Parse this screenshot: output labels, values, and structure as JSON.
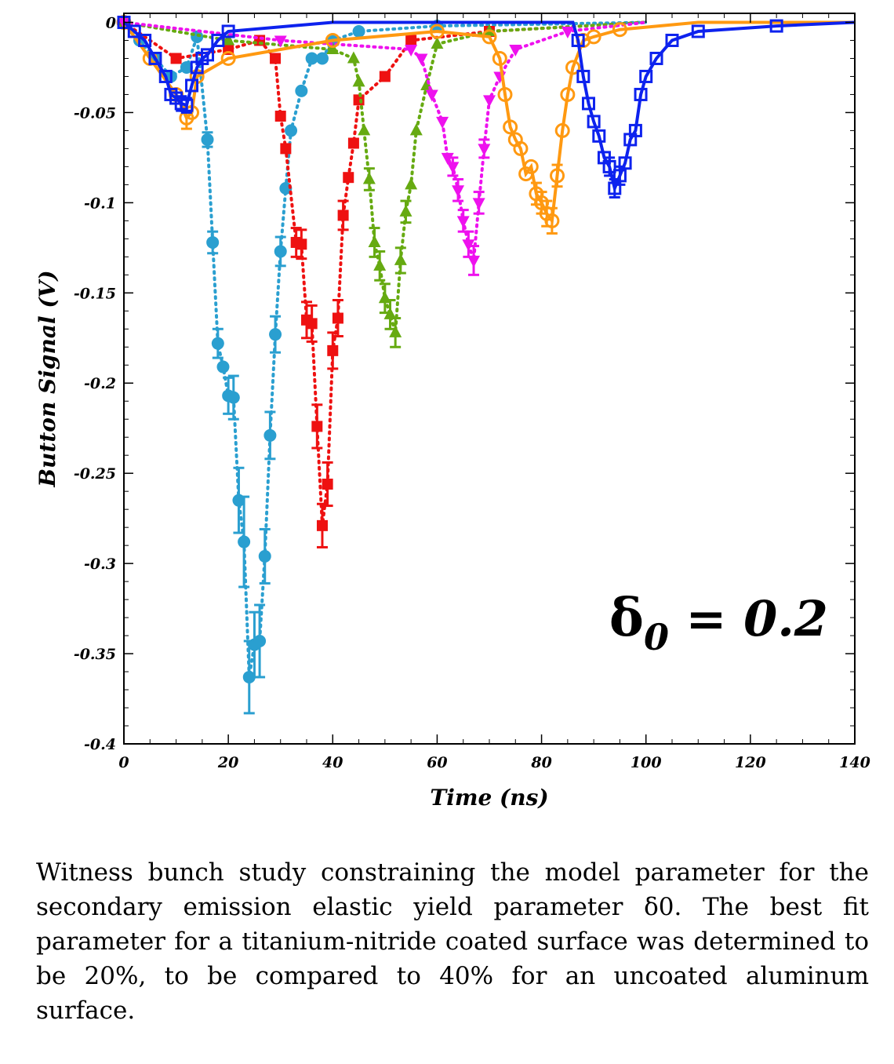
{
  "chart_data": {
    "type": "scatter",
    "xlabel": "Time (ns)",
    "ylabel": "Button Signal (V)",
    "xlim": [
      0,
      140
    ],
    "ylim": [
      -0.4,
      0.005
    ],
    "xticks": [
      0,
      20,
      40,
      60,
      80,
      100,
      120,
      140
    ],
    "xtick_labels": [
      "0",
      "20",
      "40",
      "60",
      "80",
      "100",
      "120",
      "140"
    ],
    "yticks": [
      0,
      -0.05,
      -0.1,
      -0.15,
      -0.2,
      -0.25,
      -0.3,
      -0.35,
      -0.4
    ],
    "ytick_labels": [
      "0",
      "-0.05",
      "-0.1",
      "-0.15",
      "-0.2",
      "-0.25",
      "-0.3",
      "-0.35",
      "-0.4"
    ],
    "grid": false,
    "annotation": {
      "symbol": "δ",
      "subscript": "0",
      "text": " = 0.2",
      "x": 114,
      "y": -0.34
    },
    "series": [
      {
        "color": "#2a9fd0",
        "marker": "circle",
        "line": "dotted",
        "points": [
          [
            0,
            0
          ],
          [
            3,
            -0.01
          ],
          [
            6,
            -0.02
          ],
          [
            9,
            -0.03
          ],
          [
            12,
            -0.025
          ],
          [
            14,
            -0.008
          ],
          [
            16,
            -0.065
          ],
          [
            17,
            -0.122
          ],
          [
            18,
            -0.178
          ],
          [
            19,
            -0.191
          ],
          [
            20,
            -0.207
          ],
          [
            21,
            -0.208
          ],
          [
            22,
            -0.265
          ],
          [
            23,
            -0.288
          ],
          [
            24,
            -0.363
          ],
          [
            25,
            -0.345
          ],
          [
            26,
            -0.343
          ],
          [
            27,
            -0.296
          ],
          [
            28,
            -0.229
          ],
          [
            29,
            -0.173
          ],
          [
            30,
            -0.127
          ],
          [
            31,
            -0.092
          ],
          [
            32,
            -0.06
          ],
          [
            34,
            -0.038
          ],
          [
            36,
            -0.02
          ],
          [
            38,
            -0.02
          ],
          [
            40,
            -0.01
          ],
          [
            45,
            -0.005
          ],
          [
            60,
            -0.002
          ],
          [
            100,
            0
          ]
        ],
        "errors": [
          [
            16,
            -0.065,
            0.004
          ],
          [
            17,
            -0.122,
            0.006
          ],
          [
            18,
            -0.178,
            0.008
          ],
          [
            20,
            -0.207,
            0.01
          ],
          [
            21,
            -0.208,
            0.012
          ],
          [
            22,
            -0.265,
            0.018
          ],
          [
            23,
            -0.288,
            0.025
          ],
          [
            24,
            -0.363,
            0.02
          ],
          [
            25,
            -0.345,
            0.018
          ],
          [
            26,
            -0.343,
            0.02
          ],
          [
            27,
            -0.296,
            0.015
          ],
          [
            28,
            -0.229,
            0.013
          ],
          [
            29,
            -0.173,
            0.01
          ],
          [
            30,
            -0.127,
            0.008
          ]
        ]
      },
      {
        "color": "#ee1111",
        "marker": "square",
        "line": "dotted",
        "points": [
          [
            0,
            0
          ],
          [
            10,
            -0.02
          ],
          [
            20,
            -0.015
          ],
          [
            26,
            -0.01
          ],
          [
            29,
            -0.02
          ],
          [
            30,
            -0.052
          ],
          [
            31,
            -0.07
          ],
          [
            33,
            -0.122
          ],
          [
            34,
            -0.123
          ],
          [
            35,
            -0.165
          ],
          [
            36,
            -0.167
          ],
          [
            37,
            -0.224
          ],
          [
            38,
            -0.279
          ],
          [
            39,
            -0.256
          ],
          [
            40,
            -0.182
          ],
          [
            41,
            -0.164
          ],
          [
            42,
            -0.107
          ],
          [
            43,
            -0.086
          ],
          [
            44,
            -0.067
          ],
          [
            45,
            -0.043
          ],
          [
            50,
            -0.03
          ],
          [
            55,
            -0.01
          ],
          [
            70,
            -0.005
          ],
          [
            100,
            0
          ]
        ],
        "errors": [
          [
            33,
            -0.122,
            0.008
          ],
          [
            34,
            -0.123,
            0.008
          ],
          [
            35,
            -0.165,
            0.01
          ],
          [
            36,
            -0.167,
            0.01
          ],
          [
            37,
            -0.224,
            0.012
          ],
          [
            38,
            -0.279,
            0.012
          ],
          [
            39,
            -0.256,
            0.012
          ],
          [
            40,
            -0.182,
            0.01
          ],
          [
            41,
            -0.164,
            0.01
          ],
          [
            42,
            -0.107,
            0.008
          ]
        ]
      },
      {
        "color": "#66aa11",
        "marker": "triangle-up",
        "line": "dotted",
        "points": [
          [
            0,
            0
          ],
          [
            20,
            -0.01
          ],
          [
            40,
            -0.015
          ],
          [
            44,
            -0.02
          ],
          [
            45,
            -0.033
          ],
          [
            46,
            -0.06
          ],
          [
            47,
            -0.087
          ],
          [
            48,
            -0.122
          ],
          [
            49,
            -0.135
          ],
          [
            50,
            -0.153
          ],
          [
            51,
            -0.162
          ],
          [
            52,
            -0.172
          ],
          [
            53,
            -0.132
          ],
          [
            54,
            -0.105
          ],
          [
            55,
            -0.09
          ],
          [
            56,
            -0.06
          ],
          [
            58,
            -0.035
          ],
          [
            60,
            -0.012
          ],
          [
            70,
            -0.005
          ],
          [
            100,
            0
          ]
        ],
        "errors": [
          [
            47,
            -0.087,
            0.006
          ],
          [
            48,
            -0.122,
            0.008
          ],
          [
            49,
            -0.135,
            0.008
          ],
          [
            50,
            -0.153,
            0.008
          ],
          [
            51,
            -0.162,
            0.008
          ],
          [
            52,
            -0.172,
            0.008
          ],
          [
            53,
            -0.132,
            0.007
          ],
          [
            54,
            -0.105,
            0.006
          ]
        ]
      },
      {
        "color": "#ee11ee",
        "marker": "triangle-down",
        "line": "dotted",
        "points": [
          [
            0,
            0
          ],
          [
            30,
            -0.01
          ],
          [
            55,
            -0.015
          ],
          [
            57,
            -0.02
          ],
          [
            59,
            -0.04
          ],
          [
            61,
            -0.055
          ],
          [
            62,
            -0.075
          ],
          [
            63,
            -0.08
          ],
          [
            64,
            -0.093
          ],
          [
            65,
            -0.11
          ],
          [
            66,
            -0.123
          ],
          [
            67,
            -0.132
          ],
          [
            68,
            -0.1
          ],
          [
            69,
            -0.07
          ],
          [
            70,
            -0.043
          ],
          [
            72,
            -0.03
          ],
          [
            75,
            -0.015
          ],
          [
            85,
            -0.005
          ],
          [
            100,
            0
          ]
        ],
        "errors": [
          [
            63,
            -0.08,
            0.005
          ],
          [
            64,
            -0.093,
            0.006
          ],
          [
            65,
            -0.11,
            0.006
          ],
          [
            66,
            -0.123,
            0.007
          ],
          [
            67,
            -0.132,
            0.008
          ],
          [
            68,
            -0.1,
            0.006
          ],
          [
            69,
            -0.07,
            0.005
          ]
        ]
      },
      {
        "color": "#ff9911",
        "marker": "circle-open",
        "line": "solid",
        "points": [
          [
            0,
            0
          ],
          [
            5,
            -0.02
          ],
          [
            10,
            -0.04
          ],
          [
            12,
            -0.053
          ],
          [
            13,
            -0.05
          ],
          [
            14,
            -0.03
          ],
          [
            20,
            -0.02
          ],
          [
            40,
            -0.01
          ],
          [
            60,
            -0.005
          ],
          [
            70,
            -0.008
          ],
          [
            72,
            -0.02
          ],
          [
            73,
            -0.04
          ],
          [
            74,
            -0.058
          ],
          [
            75,
            -0.065
          ],
          [
            76,
            -0.07
          ],
          [
            77,
            -0.084
          ],
          [
            78,
            -0.08
          ],
          [
            79,
            -0.095
          ],
          [
            80,
            -0.1
          ],
          [
            81,
            -0.106
          ],
          [
            82,
            -0.11
          ],
          [
            83,
            -0.085
          ],
          [
            84,
            -0.06
          ],
          [
            85,
            -0.04
          ],
          [
            86,
            -0.025
          ],
          [
            88,
            -0.01
          ],
          [
            90,
            -0.008
          ],
          [
            95,
            -0.004
          ],
          [
            110,
            0
          ],
          [
            140,
            0
          ]
        ],
        "errors": [
          [
            12,
            -0.053,
            0.006
          ],
          [
            79,
            -0.095,
            0.006
          ],
          [
            80,
            -0.1,
            0.006
          ],
          [
            81,
            -0.106,
            0.007
          ],
          [
            82,
            -0.11,
            0.007
          ],
          [
            83,
            -0.085,
            0.006
          ]
        ]
      },
      {
        "color": "#0d22ee",
        "marker": "square-open",
        "line": "solid",
        "points": [
          [
            0,
            0
          ],
          [
            2,
            -0.005
          ],
          [
            4,
            -0.01
          ],
          [
            6,
            -0.02
          ],
          [
            8,
            -0.03
          ],
          [
            9,
            -0.04
          ],
          [
            10,
            -0.042
          ],
          [
            11,
            -0.045
          ],
          [
            12,
            -0.046
          ],
          [
            13,
            -0.035
          ],
          [
            14,
            -0.025
          ],
          [
            15,
            -0.02
          ],
          [
            16,
            -0.018
          ],
          [
            18,
            -0.01
          ],
          [
            20,
            -0.005
          ],
          [
            40,
            0
          ],
          [
            86,
            0
          ],
          [
            87,
            -0.01
          ],
          [
            88,
            -0.03
          ],
          [
            89,
            -0.045
          ],
          [
            90,
            -0.055
          ],
          [
            91,
            -0.063
          ],
          [
            92,
            -0.075
          ],
          [
            93,
            -0.08
          ],
          [
            94,
            -0.092
          ],
          [
            95,
            -0.085
          ],
          [
            96,
            -0.078
          ],
          [
            97,
            -0.065
          ],
          [
            98,
            -0.06
          ],
          [
            99,
            -0.04
          ],
          [
            100,
            -0.03
          ],
          [
            102,
            -0.02
          ],
          [
            105,
            -0.01
          ],
          [
            110,
            -0.005
          ],
          [
            125,
            -0.002
          ],
          [
            140,
            0
          ]
        ],
        "errors": [
          [
            11,
            -0.045,
            0.004
          ],
          [
            12,
            -0.046,
            0.004
          ],
          [
            93,
            -0.08,
            0.005
          ],
          [
            94,
            -0.092,
            0.005
          ],
          [
            95,
            -0.085,
            0.005
          ]
        ]
      }
    ]
  },
  "caption": "Witness bunch study constraining the model parameter for the secondary emission elastic yield parameter δ0. The best fit parameter for a titanium-nitride coated surface was determined to be 20%, to be compared to 40% for an uncoated aluminum surface."
}
